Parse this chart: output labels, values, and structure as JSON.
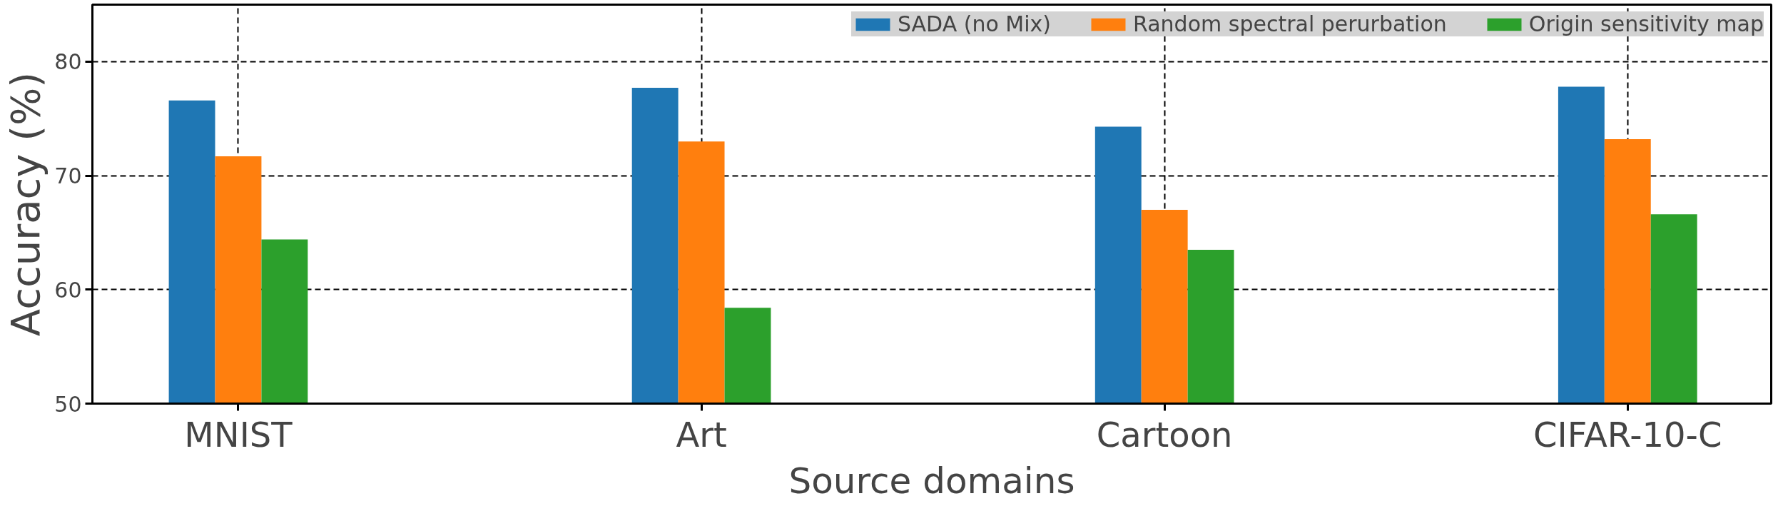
{
  "chart_data": {
    "type": "bar",
    "xlabel": "Source domains",
    "ylabel": "Accuracy (%)",
    "categories": [
      "MNIST",
      "Art",
      "Cartoon",
      "CIFAR-10-C"
    ],
    "series": [
      {
        "name": "SADA (no Mix)",
        "color": "#1f77b4",
        "values": [
          76.6,
          77.7,
          74.3,
          77.8
        ]
      },
      {
        "name": "Random spectral perurbation",
        "color": "#ff7f0e",
        "values": [
          71.7,
          73.0,
          67.0,
          73.2
        ]
      },
      {
        "name": "Origin sensitivity map",
        "color": "#2ca02c",
        "values": [
          64.4,
          58.4,
          63.5,
          66.6
        ]
      }
    ],
    "ylim": [
      50,
      85
    ],
    "yticks": [
      50,
      60,
      70,
      80
    ],
    "grid": true,
    "legend": "top right"
  }
}
